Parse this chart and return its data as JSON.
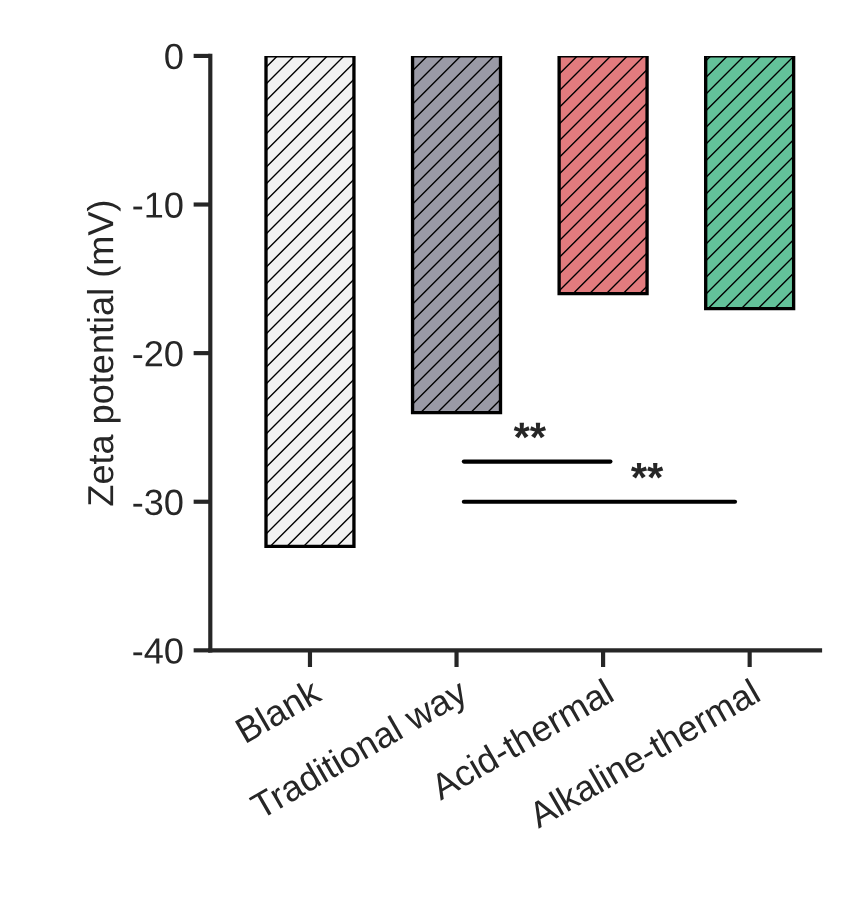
{
  "chart_data": {
    "type": "bar",
    "ylabel": "Zeta potential (mV)",
    "categories": [
      "Blank",
      "Traditional way",
      "Acid-thermal",
      "Alkaline-thermal"
    ],
    "values": [
      -33,
      -24,
      -16,
      -17
    ],
    "colors": [
      "#f2f2f2",
      "#9a9aa6",
      "#e27b7e",
      "#63c29a"
    ],
    "ylim": [
      -40,
      0
    ],
    "yticks": [
      {
        "value": 0,
        "label": "0"
      },
      {
        "value": -10,
        "label": "-10"
      },
      {
        "value": -20,
        "label": "-20"
      },
      {
        "value": -30,
        "label": "-30"
      },
      {
        "value": -40,
        "label": "-40"
      }
    ],
    "annotations": [
      "**",
      "**"
    ],
    "grid": false,
    "legend": false
  }
}
